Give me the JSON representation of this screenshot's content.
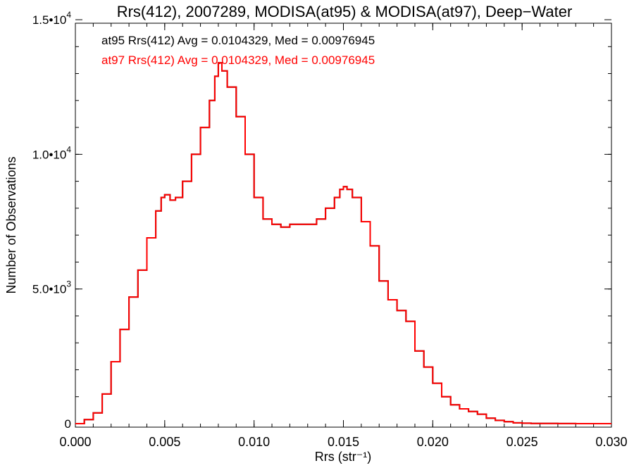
{
  "chart_data": {
    "type": "line",
    "step": true,
    "title": "Rrs(412), 2007289, MODISA(at95) & MODISA(at97), Deep−Water",
    "xlabel": "Rrs (str⁻¹)",
    "ylabel": "Number of Observations",
    "xlim": [
      0.0,
      0.03
    ],
    "ylim": [
      0,
      15000
    ],
    "x_ticks": [
      {
        "value": 0.0,
        "label": "0.000"
      },
      {
        "value": 0.005,
        "label": "0.005"
      },
      {
        "value": 0.01,
        "label": "0.010"
      },
      {
        "value": 0.015,
        "label": "0.015"
      },
      {
        "value": 0.02,
        "label": "0.020"
      },
      {
        "value": 0.025,
        "label": "0.025"
      },
      {
        "value": 0.03,
        "label": "0.030"
      }
    ],
    "x_minor_step": 0.001,
    "y_ticks": [
      {
        "value": 0,
        "mant": "0",
        "exp": ""
      },
      {
        "value": 5000,
        "mant": "5.0•10",
        "exp": "3"
      },
      {
        "value": 10000,
        "mant": "1.0•10",
        "exp": "4"
      },
      {
        "value": 15000,
        "mant": "1.5•10",
        "exp": "4"
      }
    ],
    "y_minor_step": 1000,
    "grid": false,
    "annotations": [
      {
        "text": "at95 Rrs(412) Avg = 0.0104329, Med = 0.00976945",
        "color": "#000000"
      },
      {
        "text": "at97 Rrs(412) Avg = 0.0104329, Med = 0.00976945",
        "color": "#ff0000"
      }
    ],
    "series": [
      {
        "color": "#000000",
        "x": [
          0.0,
          0.0005,
          0.001,
          0.0015,
          0.002,
          0.0025,
          0.003,
          0.0035,
          0.004,
          0.0045,
          0.0048,
          0.005,
          0.0053,
          0.0056,
          0.006,
          0.0065,
          0.007,
          0.0075,
          0.0078,
          0.008,
          0.0082,
          0.0085,
          0.009,
          0.0095,
          0.01,
          0.0105,
          0.011,
          0.0115,
          0.012,
          0.0125,
          0.013,
          0.0135,
          0.014,
          0.0145,
          0.0148,
          0.015,
          0.0152,
          0.0155,
          0.016,
          0.0165,
          0.017,
          0.0175,
          0.018,
          0.0185,
          0.019,
          0.0195,
          0.02,
          0.0205,
          0.021,
          0.0215,
          0.022,
          0.0225,
          0.023,
          0.0235,
          0.024,
          0.0245,
          0.025,
          0.0255,
          0.026,
          0.027,
          0.028,
          0.029,
          0.03
        ],
        "y": [
          0,
          150,
          400,
          1100,
          2300,
          3500,
          4700,
          5700,
          6900,
          7900,
          8400,
          8500,
          8300,
          8400,
          9000,
          10000,
          11000,
          12000,
          12900,
          13400,
          13100,
          12500,
          11400,
          10000,
          8400,
          7600,
          7400,
          7300,
          7400,
          7400,
          7400,
          7600,
          8000,
          8400,
          8700,
          8800,
          8700,
          8400,
          7500,
          6600,
          5300,
          4600,
          4200,
          3800,
          2700,
          2100,
          1500,
          1000,
          700,
          550,
          450,
          350,
          200,
          120,
          70,
          30,
          15,
          8,
          4,
          2,
          1,
          0,
          0
        ]
      },
      {
        "color": "#ff0000",
        "x": [
          0.0,
          0.0005,
          0.001,
          0.0015,
          0.002,
          0.0025,
          0.003,
          0.0035,
          0.004,
          0.0045,
          0.0048,
          0.005,
          0.0053,
          0.0056,
          0.006,
          0.0065,
          0.007,
          0.0075,
          0.0078,
          0.008,
          0.0082,
          0.0085,
          0.009,
          0.0095,
          0.01,
          0.0105,
          0.011,
          0.0115,
          0.012,
          0.0125,
          0.013,
          0.0135,
          0.014,
          0.0145,
          0.0148,
          0.015,
          0.0152,
          0.0155,
          0.016,
          0.0165,
          0.017,
          0.0175,
          0.018,
          0.0185,
          0.019,
          0.0195,
          0.02,
          0.0205,
          0.021,
          0.0215,
          0.022,
          0.0225,
          0.023,
          0.0235,
          0.024,
          0.0245,
          0.025,
          0.0255,
          0.026,
          0.027,
          0.028,
          0.029,
          0.03
        ],
        "y": [
          0,
          150,
          400,
          1100,
          2300,
          3500,
          4700,
          5700,
          6900,
          7900,
          8400,
          8500,
          8300,
          8400,
          9000,
          10000,
          11000,
          12000,
          12900,
          13400,
          13100,
          12500,
          11400,
          10000,
          8400,
          7600,
          7400,
          7300,
          7400,
          7400,
          7400,
          7600,
          8000,
          8400,
          8700,
          8800,
          8700,
          8400,
          7500,
          6600,
          5300,
          4600,
          4200,
          3800,
          2700,
          2100,
          1500,
          1000,
          700,
          550,
          450,
          350,
          200,
          120,
          70,
          30,
          15,
          8,
          4,
          2,
          1,
          0,
          0
        ]
      }
    ]
  }
}
